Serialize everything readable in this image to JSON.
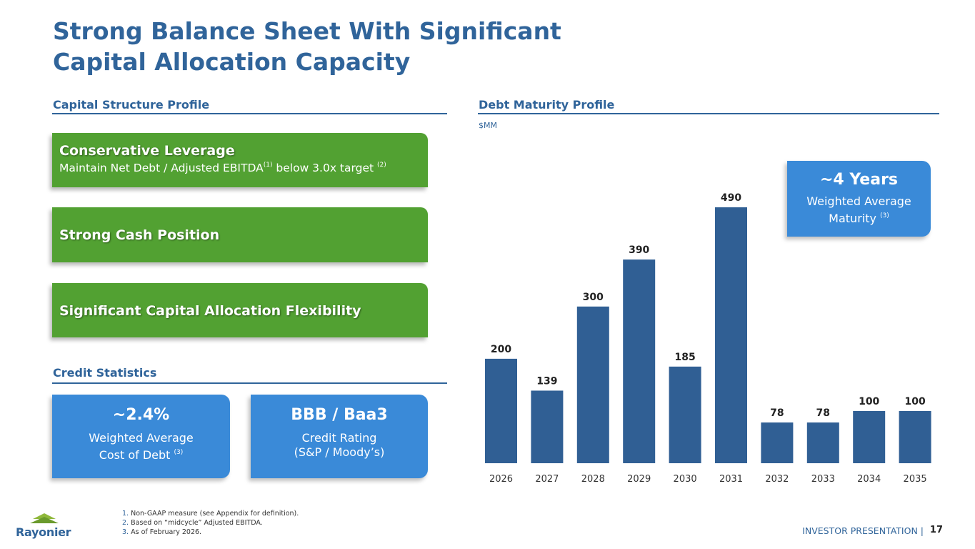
{
  "title": {
    "line1": "Strong Balance Sheet With Significant",
    "line2": "Capital Allocation Capacity"
  },
  "capital_structure": {
    "heading": "Capital Structure Profile",
    "boxes": [
      {
        "title": "Conservative Leverage",
        "sub_a": "Maintain Net Debt / Adjusted EBITDA",
        "fn_a": "(1)",
        "sub_b": " below 3.0x target ",
        "fn_b": "(2)"
      },
      {
        "title": "Strong Cash Position"
      },
      {
        "title": "Significant Capital Allocation Flexibility"
      }
    ]
  },
  "credit_statistics": {
    "heading": "Credit Statistics",
    "cards": [
      {
        "value": "~2.4%",
        "line1": "Weighted Average",
        "line2": "Cost of Debt",
        "fn": "(3)"
      },
      {
        "value": "BBB / Baa3",
        "line1": "Credit Rating",
        "line2": "(S&P / Moody’s)"
      }
    ]
  },
  "debt_maturity": {
    "heading": "Debt Maturity Profile",
    "unit": "$MM",
    "callout": {
      "value": "~4 Years",
      "line1": "Weighted Average",
      "line2": "Maturity",
      "fn": "(3)"
    }
  },
  "chart_data": {
    "type": "bar",
    "categories": [
      "2026",
      "2027",
      "2028",
      "2029",
      "2030",
      "2031",
      "2032",
      "2033",
      "2034",
      "2035"
    ],
    "values": [
      200,
      139,
      300,
      390,
      185,
      490,
      78,
      78,
      100,
      100
    ],
    "data_labels": [
      "200",
      "139",
      "300",
      "390",
      "185",
      "490",
      "78",
      "78",
      "100",
      "100"
    ],
    "title": "",
    "ylabel": "$MM",
    "ylim": [
      0,
      490
    ],
    "grid": false,
    "legend": "none",
    "bar_color": "#305f94"
  },
  "footnotes": [
    {
      "num": "1.",
      "text": "Non-GAAP measure (see Appendix for definition)."
    },
    {
      "num": "2.",
      "text": "Based on “midcycle” Adjusted EBITDA."
    },
    {
      "num": "3.",
      "text": "As of February 2026."
    }
  ],
  "footer": {
    "brand": "Rayonier",
    "label": "INVESTOR PRESENTATION |",
    "page": "17"
  },
  "colors": {
    "accent_blue": "#30649a",
    "card_blue": "#3a8ad8",
    "green": "#52a132"
  }
}
